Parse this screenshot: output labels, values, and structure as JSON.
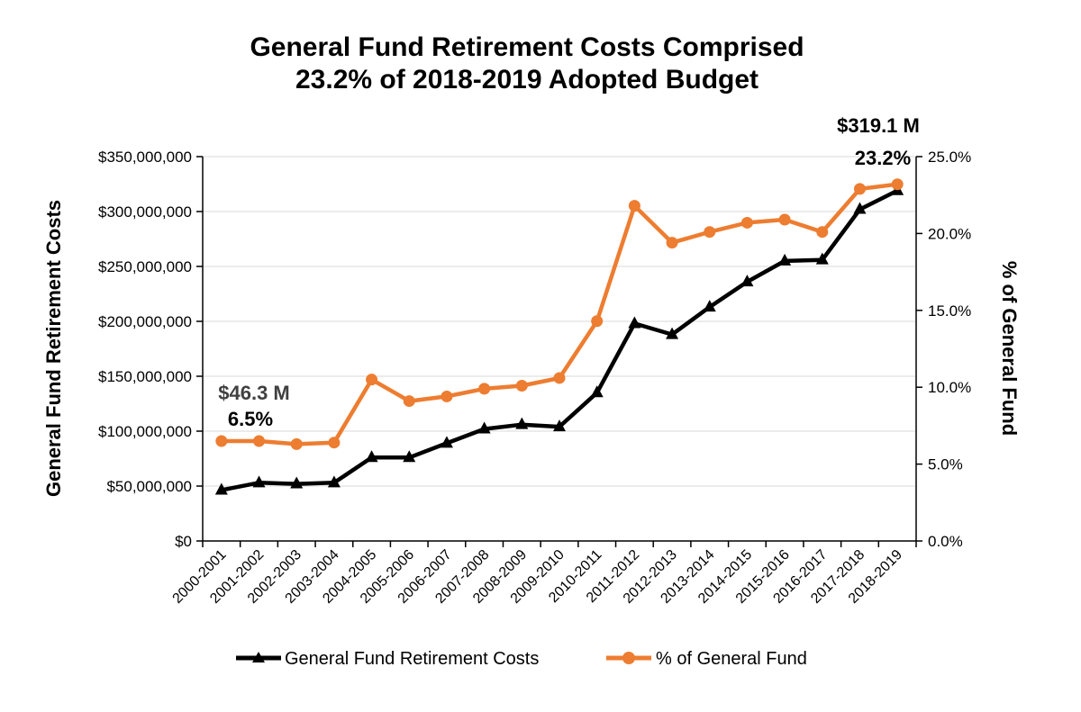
{
  "chart_data": {
    "type": "line",
    "title_lines": [
      "General Fund Retirement Costs Comprised",
      "23.2% of 2018-2019 Adopted Budget"
    ],
    "categories": [
      "2000-2001",
      "2001-2002",
      "2002-2003",
      "2003-2004",
      "2004-2005",
      "2005-2006",
      "2006-2007",
      "2007-2008",
      "2008-2009",
      "2009-2010",
      "2010-2011",
      "2011-2012",
      "2012-2013",
      "2013-2014",
      "2014-2015",
      "2015-2016",
      "2016-2017",
      "2017-2018",
      "2018-2019"
    ],
    "series": [
      {
        "name": "General Fund Retirement Costs",
        "axis": "left",
        "color": "#000000",
        "marker": "triangle",
        "values": [
          46300000,
          53000000,
          52000000,
          53000000,
          76000000,
          76000000,
          89000000,
          102000000,
          106000000,
          104000000,
          135000000,
          198000000,
          188000000,
          213000000,
          236000000,
          255000000,
          256000000,
          302000000,
          319100000
        ]
      },
      {
        "name": "% of General Fund",
        "axis": "right",
        "color": "#ED7D31",
        "marker": "circle",
        "values": [
          6.5,
          6.5,
          6.3,
          6.4,
          10.5,
          9.1,
          9.4,
          9.9,
          10.1,
          10.6,
          14.3,
          21.8,
          19.4,
          20.1,
          20.7,
          20.9,
          20.1,
          22.9,
          23.2
        ]
      }
    ],
    "y_left": {
      "label": "General Fund Retirement Costs",
      "ylim": [
        0,
        350000000
      ],
      "ticks": [
        0,
        50000000,
        100000000,
        150000000,
        200000000,
        250000000,
        300000000,
        350000000
      ],
      "tick_labels": [
        "$0",
        "$50,000,000",
        "$100,000,000",
        "$150,000,000",
        "$200,000,000",
        "$250,000,000",
        "$300,000,000",
        "$350,000,000"
      ]
    },
    "y_right": {
      "label": "% of General Fund",
      "ylim": [
        0,
        25
      ],
      "ticks": [
        0,
        5,
        10,
        15,
        20,
        25
      ],
      "tick_labels": [
        "0.0%",
        "5.0%",
        "10.0%",
        "15.0%",
        "20.0%",
        "25.0%"
      ]
    },
    "annotations": {
      "start_amount": "$46.3 M",
      "start_pct": "6.5%",
      "end_amount": "$319.1 M",
      "end_pct": "23.2%"
    },
    "grid": true,
    "legend_position": "bottom-center"
  }
}
